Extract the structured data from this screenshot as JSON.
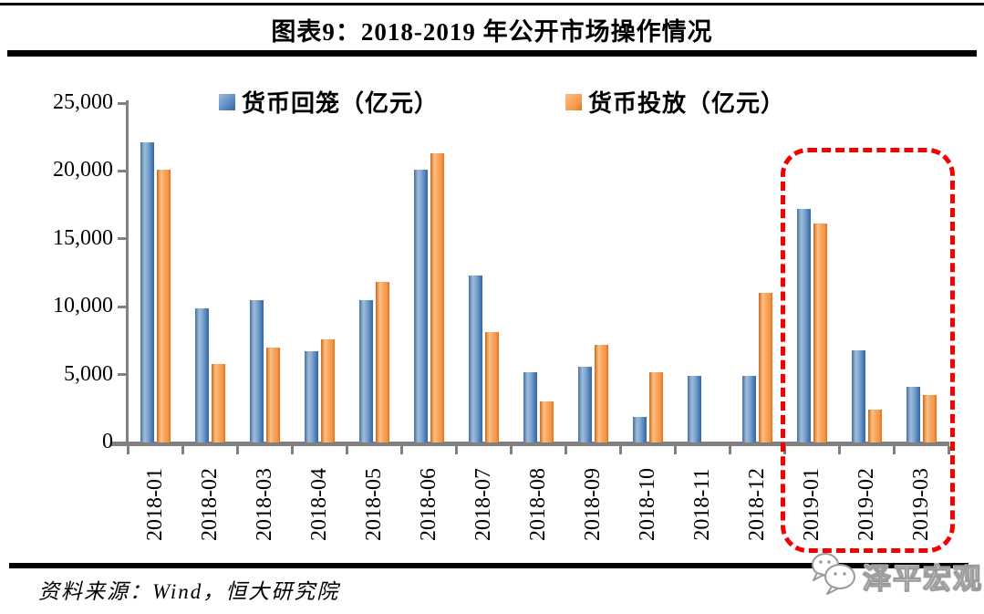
{
  "figure": {
    "title": "图表9：2018-2019 年公开市场操作情况",
    "source_note": "资料来源：Wind，恒大研究院",
    "watermark_text": "泽平宏观"
  },
  "colors": {
    "bar_blue": "#4F81BD",
    "bar_orange": "#F79646",
    "axis_gray": "#808080",
    "highlight_red": "#F40000",
    "rule_black": "#000000"
  },
  "chart_data": {
    "type": "bar",
    "title": "图表9：2018-2019 年公开市场操作情况",
    "categories": [
      "2018-01",
      "2018-02",
      "2018-03",
      "2018-04",
      "2018-05",
      "2018-06",
      "2018-07",
      "2018-08",
      "2018-09",
      "2018-10",
      "2018-11",
      "2018-12",
      "2019-01",
      "2019-02",
      "2019-03"
    ],
    "series": [
      {
        "name": "货币回笼（亿元）",
        "color": "#4F81BD",
        "values": [
          22100,
          9900,
          10500,
          6700,
          10500,
          20100,
          12300,
          5200,
          5600,
          1900,
          4900,
          4900,
          17200,
          6800,
          4100
        ]
      },
      {
        "name": "货币投放（亿元）",
        "color": "#F79646",
        "values": [
          20100,
          5800,
          7000,
          7600,
          11800,
          21300,
          8100,
          3000,
          7200,
          5200,
          0,
          11000,
          16100,
          2400,
          3500
        ]
      }
    ],
    "xlabel": "",
    "ylabel": "",
    "ylim": [
      0,
      25000
    ],
    "ytick_labels": [
      "0",
      "5,000",
      "10,000",
      "15,000",
      "20,000",
      "25,000"
    ],
    "grid": false,
    "legend_position": "top",
    "highlight": {
      "categories": [
        "2019-01",
        "2019-02",
        "2019-03"
      ],
      "style": "red-dashed-rounded-box"
    }
  }
}
